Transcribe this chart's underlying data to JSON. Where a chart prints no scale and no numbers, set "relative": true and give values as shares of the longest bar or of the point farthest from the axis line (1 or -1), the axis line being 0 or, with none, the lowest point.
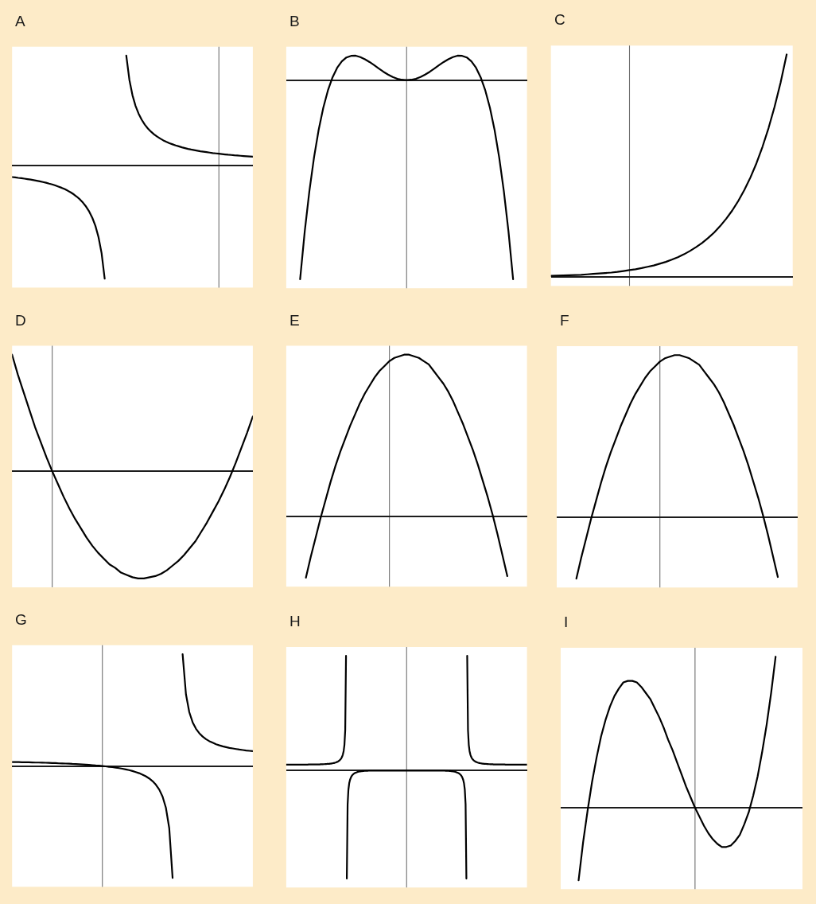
{
  "chart_data": [
    {
      "type": "line",
      "title": "A",
      "relative": true,
      "categories": [
        null,
        null,
        null,
        null,
        null,
        null,
        null,
        null,
        null,
        null,
        null,
        null,
        null,
        null,
        null,
        null,
        null,
        null,
        null,
        null,
        null,
        null,
        null,
        null,
        null,
        null,
        null,
        null,
        null,
        null,
        null,
        null,
        null,
        null,
        null,
        null,
        null,
        null,
        null,
        null,
        null,
        null,
        null,
        null,
        null,
        null,
        null,
        null,
        null,
        null,
        null,
        null,
        null,
        null,
        null,
        null,
        null,
        null,
        null,
        null,
        null,
        null,
        null,
        null,
        null,
        null,
        null,
        null,
        null,
        null,
        null,
        null,
        null,
        null,
        null,
        null,
        null,
        null,
        null
      ],
      "series": [
        {
          "color": "#000000",
          "values": [
            -0.103,
            -0.106,
            -0.11,
            -0.113,
            -0.117,
            -0.121,
            -0.125,
            -0.13,
            -0.135,
            -0.141,
            -0.147,
            -0.153,
            -0.161,
            -0.168,
            -0.177,
            -0.187,
            -0.197,
            -0.209,
            -0.223,
            -0.238,
            -0.256,
            -0.277,
            -0.301,
            -0.33,
            -0.365,
            -0.408,
            -0.463,
            -0.534,
            -0.633,
            -0.775,
            -1.0,
            null,
            null,
            null,
            null,
            null,
            null,
            null,
            null,
            null,
            null,
            null,
            null,
            null,
            null,
            null,
            null,
            null,
            null,
            null,
            null,
            null,
            null,
            null,
            null,
            null,
            null,
            null,
            null,
            null,
            null,
            null,
            null,
            null,
            null,
            null,
            null,
            null,
            null,
            null,
            null,
            null,
            null,
            null,
            null,
            null,
            null,
            null,
            null
          ]
        },
        {
          "color": "#000000",
          "values": [
            null,
            null,
            null,
            null,
            null,
            null,
            null,
            null,
            null,
            null,
            null,
            null,
            null,
            null,
            null,
            null,
            null,
            null,
            null,
            null,
            null,
            null,
            null,
            null,
            null,
            null,
            null,
            null,
            null,
            null,
            null,
            null,
            null,
            null,
            null,
            null,
            null,
            0.969,
            0.756,
            0.62,
            0.525,
            0.456,
            0.403,
            0.36,
            0.326,
            0.298,
            0.274,
            0.254,
            0.237,
            0.221,
            0.208,
            0.196,
            0.186,
            0.176,
            0.168,
            0.16,
            0.153,
            0.146,
            0.14,
            0.135,
            0.13,
            0.125,
            0.121,
            0.117,
            0.113,
            0.109,
            0.106,
            0.103,
            0.1,
            0.097,
            0.094,
            0.092,
            0.089,
            0.087,
            0.085,
            0.083,
            0.081,
            0.079,
            0.077
          ]
        }
      ]
    },
    {
      "type": "line",
      "title": "B",
      "relative": true,
      "color": "#000000",
      "categories": [
        null,
        null,
        null,
        null,
        null,
        null,
        null,
        null,
        null,
        null,
        null,
        null,
        null,
        null,
        null,
        null,
        null,
        null,
        null,
        null,
        null,
        null,
        null,
        null,
        null,
        null,
        null,
        null,
        null,
        null,
        null,
        null,
        null,
        null,
        null,
        null,
        null,
        null,
        null,
        null,
        null,
        null,
        null,
        null,
        null,
        null,
        null,
        null,
        null,
        null,
        null,
        null,
        null
      ],
      "values": [
        null,
        null,
        null,
        -1.0,
        -0.759,
        -0.557,
        -0.388,
        -0.25,
        -0.139,
        -0.052,
        0.014,
        0.062,
        0.094,
        0.114,
        0.122,
        0.123,
        0.116,
        0.105,
        0.091,
        0.075,
        0.058,
        0.042,
        0.028,
        0.016,
        0.007,
        0.002,
        0,
        0.002,
        0.007,
        0.016,
        0.028,
        0.042,
        0.058,
        0.075,
        0.091,
        0.105,
        0.116,
        0.123,
        0.122,
        0.114,
        0.094,
        0.062,
        0.014,
        -0.052,
        -0.139,
        -0.25,
        -0.388,
        -0.557,
        -0.759,
        -1.0,
        null,
        null,
        null
      ]
    },
    {
      "type": "line",
      "title": "C",
      "relative": true,
      "color": "#000000",
      "categories": [
        null,
        null,
        null,
        null,
        null,
        null,
        null,
        null,
        null,
        null,
        null,
        null,
        null,
        null,
        null,
        null,
        null,
        null,
        null,
        null,
        null,
        null,
        null,
        null,
        null,
        null,
        null,
        null,
        null,
        null,
        null,
        null,
        null,
        null,
        null,
        null,
        null,
        null,
        null,
        null,
        null
      ],
      "values": [
        0.005,
        0.006,
        0.007,
        0.008,
        0.009,
        0.01,
        0.012,
        0.014,
        0.016,
        0.018,
        0.02,
        0.023,
        0.027,
        0.031,
        0.035,
        0.04,
        0.046,
        0.052,
        0.06,
        0.068,
        0.078,
        0.089,
        0.102,
        0.117,
        0.134,
        0.153,
        0.175,
        0.2,
        0.229,
        0.262,
        0.299,
        0.342,
        0.391,
        0.447,
        0.511,
        0.585,
        0.669,
        0.765,
        0.874,
        1.0,
        null
      ]
    },
    {
      "type": "line",
      "title": "D",
      "relative": true,
      "color": "#000000",
      "categories": [
        null,
        null,
        null,
        null,
        null,
        null,
        null,
        null,
        null,
        null,
        null,
        null,
        null,
        null,
        null,
        null,
        null,
        null,
        null,
        null,
        null,
        null,
        null,
        null,
        null,
        null,
        null,
        null,
        null,
        null,
        null,
        null,
        null,
        null,
        null,
        null,
        null,
        null,
        null,
        null,
        null,
        null,
        null
      ],
      "values": [
        1.0,
        0.83,
        0.68,
        0.53,
        0.38,
        0.25,
        0.12,
        0,
        -0.11,
        -0.22,
        -0.32,
        -0.41,
        -0.49,
        -0.57,
        -0.64,
        -0.7,
        -0.75,
        -0.8,
        -0.83,
        -0.87,
        -0.89,
        -0.91,
        -0.92,
        -0.92,
        -0.91,
        -0.9,
        -0.88,
        -0.85,
        -0.81,
        -0.77,
        -0.72,
        -0.66,
        -0.6,
        -0.52,
        -0.44,
        -0.35,
        -0.26,
        -0.16,
        -0.05,
        0.07,
        0.2,
        0.33,
        0.47
      ]
    },
    {
      "type": "line",
      "title": "E",
      "relative": true,
      "color": "#000000",
      "categories": [
        null,
        null,
        null,
        null,
        null,
        null,
        null,
        null,
        null,
        null,
        null,
        null,
        null,
        null,
        null,
        null,
        null,
        null,
        null,
        null,
        null,
        null,
        null,
        null,
        null,
        null,
        null,
        null,
        null,
        null,
        null,
        null,
        null,
        null,
        null,
        null,
        null,
        null,
        null,
        null,
        null,
        null,
        null,
        null,
        null,
        null,
        null,
        null,
        null,
        null
      ],
      "values": [
        null,
        null,
        null,
        null,
        -0.38,
        -0.25,
        -0.13,
        -0.01,
        0.1,
        0.21,
        0.31,
        0.4,
        0.48,
        0.56,
        0.63,
        0.7,
        0.76,
        0.81,
        0.86,
        0.9,
        0.93,
        0.96,
        0.98,
        0.99,
        1.0,
        1.0,
        0.99,
        0.98,
        0.96,
        0.94,
        0.9,
        0.86,
        0.82,
        0.77,
        0.71,
        0.64,
        0.57,
        0.49,
        0.41,
        0.32,
        0.22,
        0.12,
        0.01,
        -0.11,
        -0.24,
        -0.37,
        null,
        null,
        null,
        null
      ]
    },
    {
      "type": "line",
      "title": "F",
      "relative": true,
      "color": "#000000",
      "categories": [
        null,
        null,
        null,
        null,
        null,
        null,
        null,
        null,
        null,
        null,
        null,
        null,
        null,
        null,
        null,
        null,
        null,
        null,
        null,
        null,
        null,
        null,
        null,
        null,
        null,
        null,
        null,
        null,
        null,
        null,
        null,
        null,
        null,
        null,
        null,
        null,
        null,
        null,
        null,
        null,
        null,
        null,
        null,
        null,
        null,
        null,
        null,
        null,
        null,
        null
      ],
      "values": [
        null,
        null,
        null,
        null,
        -0.38,
        -0.25,
        -0.13,
        -0.01,
        0.1,
        0.21,
        0.31,
        0.4,
        0.48,
        0.56,
        0.63,
        0.7,
        0.76,
        0.81,
        0.86,
        0.9,
        0.93,
        0.96,
        0.98,
        0.99,
        1.0,
        1.0,
        0.99,
        0.98,
        0.96,
        0.94,
        0.9,
        0.86,
        0.82,
        0.77,
        0.71,
        0.64,
        0.57,
        0.49,
        0.41,
        0.32,
        0.22,
        0.12,
        0.01,
        -0.11,
        -0.24,
        -0.37,
        null,
        null,
        null,
        null
      ]
    },
    {
      "type": "line",
      "title": "G",
      "relative": true,
      "categories": [
        null,
        null,
        null,
        null,
        null,
        null,
        null,
        null,
        null,
        null,
        null,
        null,
        null,
        null,
        null,
        null,
        null,
        null,
        null,
        null,
        null,
        null,
        null,
        null,
        null,
        null,
        null,
        null,
        null,
        null,
        null,
        null,
        null,
        null,
        null,
        null,
        null,
        null,
        null,
        null,
        null,
        null,
        null,
        null,
        null,
        null,
        null,
        null,
        null,
        null,
        null,
        null,
        null,
        null,
        null,
        null,
        null,
        null,
        null,
        null,
        null,
        null,
        null,
        null,
        null,
        null,
        null,
        null,
        null,
        null,
        null,
        null,
        null
      ],
      "series": [
        {
          "color": "#000000",
          "values": [
            0.036,
            0.036,
            0.035,
            0.034,
            0.034,
            0.033,
            0.032,
            0.031,
            0.031,
            0.03,
            0.029,
            0.028,
            0.027,
            0.026,
            0.024,
            0.023,
            0.022,
            0.021,
            0.019,
            0.018,
            0.016,
            0.014,
            0.012,
            0.01,
            0.008,
            0.005,
            0.003,
            0,
            -0.003,
            -0.007,
            -0.01,
            -0.014,
            -0.019,
            -0.024,
            -0.03,
            -0.037,
            -0.045,
            -0.054,
            -0.064,
            -0.077,
            -0.092,
            -0.111,
            -0.135,
            -0.167,
            -0.21,
            -0.273,
            -0.373,
            -0.556,
            -1.0,
            null,
            null,
            null,
            null,
            null,
            null,
            null,
            null,
            null,
            null,
            null,
            null,
            null,
            null,
            null,
            null,
            null,
            null,
            null,
            null,
            null,
            null,
            null,
            null
          ]
        },
        {
          "color": "#000000",
          "values": [
            null,
            null,
            null,
            null,
            null,
            null,
            null,
            null,
            null,
            null,
            null,
            null,
            null,
            null,
            null,
            null,
            null,
            null,
            null,
            null,
            null,
            null,
            null,
            null,
            null,
            null,
            null,
            null,
            null,
            null,
            null,
            null,
            null,
            null,
            null,
            null,
            null,
            null,
            null,
            null,
            null,
            null,
            null,
            null,
            null,
            null,
            null,
            null,
            null,
            null,
            null,
            1.0,
            0.641,
            0.481,
            0.391,
            0.333,
            0.293,
            0.263,
            0.24,
            0.222,
            0.208,
            0.195,
            0.185,
            0.176,
            0.169,
            0.162,
            0.157,
            0.152,
            0.147,
            0.143,
            0.139,
            0.136,
            0.133
          ]
        }
      ]
    },
    {
      "type": "line",
      "title": "H",
      "relative": true,
      "categories": [
        null,
        null,
        null,
        null,
        null,
        null,
        null,
        null,
        null,
        null,
        null,
        null,
        null,
        null,
        null,
        null,
        null,
        null,
        null,
        null,
        null,
        null,
        null,
        null,
        null,
        null,
        null,
        null,
        null,
        null,
        null,
        null,
        null,
        null,
        null,
        null,
        null,
        null,
        null,
        null,
        null,
        null,
        null,
        null,
        null,
        null,
        null,
        null,
        null,
        null,
        null,
        null,
        null,
        null,
        null,
        null,
        null,
        null,
        null,
        null,
        null,
        null,
        null,
        null,
        null,
        null,
        null,
        null,
        null,
        null,
        null,
        null,
        null,
        null,
        null,
        null,
        null,
        null,
        null,
        null,
        null,
        null,
        null,
        null,
        null,
        null,
        null,
        null,
        null,
        null,
        null,
        null,
        null,
        null,
        null,
        null,
        null,
        null,
        null,
        null,
        null,
        null,
        null,
        null,
        null,
        null,
        null,
        null,
        null,
        null,
        null,
        null,
        null,
        null,
        null,
        null,
        null,
        null,
        null,
        null,
        null,
        null,
        null,
        null,
        null,
        null,
        null,
        null,
        null,
        null,
        null,
        null,
        null,
        null,
        null,
        null,
        null,
        null,
        null,
        null,
        null,
        null,
        null,
        null,
        null,
        null,
        null,
        null,
        null,
        null,
        null,
        null,
        null,
        null,
        null,
        null,
        null,
        null,
        null,
        null,
        null,
        null,
        null,
        null,
        null,
        null,
        null,
        null,
        null,
        null,
        null,
        null,
        null,
        null,
        null,
        null,
        null,
        null,
        null,
        null,
        null,
        null,
        null,
        null,
        null,
        null,
        null,
        null,
        null,
        null,
        null,
        null,
        null,
        null,
        null,
        null,
        null,
        null,
        null,
        null,
        null,
        null,
        null,
        null,
        null,
        null,
        null,
        null,
        null,
        null,
        null,
        null,
        null,
        null,
        null,
        null,
        null,
        null,
        null,
        null,
        null,
        null,
        null,
        null,
        null,
        null,
        null,
        null,
        null,
        null,
        null,
        null,
        null,
        null,
        null,
        null,
        null,
        null,
        null,
        null,
        null,
        null,
        null,
        null,
        null,
        null,
        null,
        null,
        null,
        null,
        null,
        null,
        null,
        null,
        null,
        null,
        null,
        null,
        null,
        null,
        null,
        null,
        null,
        null,
        null,
        null,
        null,
        null,
        null,
        null,
        null,
        null,
        null,
        null,
        null,
        null,
        null,
        null,
        null,
        null,
        null,
        null,
        null,
        null,
        null,
        null,
        null,
        null,
        null,
        null,
        null,
        null,
        null,
        null,
        null,
        null,
        null,
        null,
        null,
        null,
        null,
        null,
        null
      ],
      "series": [
        {
          "color": "#000000",
          "values": [
            0.052,
            0.052,
            0.052,
            0.052,
            0.052,
            0.052,
            0.052,
            0.052,
            0.052,
            0.052,
            0.052,
            0.052,
            0.052,
            0.052,
            0.052,
            0.052,
            0.052,
            0.052,
            0.052,
            0.052,
            0.052,
            0.052,
            0.052,
            0.052,
            0.052,
            0.052,
            0.052,
            0.052,
            0.053,
            0.053,
            0.053,
            0.053,
            0.053,
            0.053,
            0.053,
            0.053,
            0.053,
            0.053,
            0.054,
            0.054,
            0.054,
            0.054,
            0.054,
            0.055,
            0.055,
            0.055,
            0.055,
            0.056,
            0.056,
            0.057,
            0.057,
            0.058,
            0.058,
            0.059,
            0.059,
            0.06,
            0.061,
            0.062,
            0.063,
            0.065,
            0.066,
            0.068,
            0.07,
            0.073,
            0.076,
            0.079,
            0.084,
            0.09,
            0.097,
            0.106,
            0.12,
            0.139,
            0.169,
            0.224,
            0.353,
            1.0,
            null,
            null,
            null,
            null,
            null,
            null,
            null,
            null,
            null,
            null,
            null,
            null,
            null,
            null,
            null,
            null,
            null,
            null,
            null,
            null,
            null,
            null,
            null,
            null,
            null,
            null,
            null,
            null,
            null,
            null,
            null,
            null,
            null,
            null,
            null,
            null,
            null,
            null,
            null,
            null,
            null,
            null,
            null,
            null,
            null,
            null,
            null,
            null,
            null,
            null,
            null,
            null,
            null,
            null,
            null,
            null,
            null,
            null,
            null,
            null,
            null,
            null,
            null,
            null,
            null,
            null,
            null,
            null,
            null,
            null,
            null,
            null,
            null,
            null,
            null,
            null,
            null,
            null,
            null,
            null,
            null,
            null,
            null,
            null,
            null,
            null,
            null,
            null,
            null,
            null,
            null,
            null,
            null,
            null,
            null,
            null,
            null,
            null,
            null,
            null,
            null,
            null,
            null,
            null,
            null,
            null,
            null,
            null,
            null,
            null,
            null,
            null,
            null,
            null,
            null,
            null,
            null,
            null,
            null,
            null,
            null,
            null,
            null,
            null,
            null,
            null,
            null,
            null,
            null,
            null,
            null,
            null,
            null,
            null,
            null,
            null,
            null,
            null,
            null,
            null,
            null,
            null,
            null,
            null,
            null,
            null,
            null,
            null,
            null,
            null,
            null,
            null,
            null,
            null,
            null,
            null,
            null,
            null,
            null,
            null,
            null,
            null,
            null,
            null,
            null,
            null,
            null,
            null,
            null,
            null,
            null,
            null,
            null,
            null,
            null,
            null,
            null,
            null,
            null,
            null,
            null,
            null,
            null,
            null,
            null,
            null,
            null,
            null,
            null,
            null,
            null,
            null,
            null,
            null,
            null,
            null,
            null,
            null,
            null,
            null,
            null,
            null,
            null,
            null,
            null,
            null,
            null,
            null,
            null,
            null,
            null,
            null,
            null,
            null,
            null,
            null,
            null,
            null,
            null,
            null,
            null,
            null,
            null,
            null,
            null,
            null,
            null
          ]
        },
        {
          "color": "#000000",
          "values": [
            null,
            null,
            null,
            null,
            null,
            null,
            null,
            null,
            null,
            null,
            null,
            null,
            null,
            null,
            null,
            null,
            null,
            null,
            null,
            null,
            null,
            null,
            null,
            null,
            null,
            null,
            null,
            null,
            null,
            null,
            null,
            null,
            null,
            null,
            null,
            null,
            null,
            null,
            null,
            null,
            null,
            null,
            null,
            null,
            null,
            null,
            null,
            null,
            null,
            null,
            null,
            null,
            null,
            null,
            null,
            null,
            null,
            null,
            null,
            null,
            null,
            null,
            null,
            null,
            null,
            null,
            null,
            null,
            null,
            null,
            null,
            null,
            null,
            null,
            null,
            null,
            -0.942,
            -0.295,
            -0.166,
            -0.111,
            -0.081,
            -0.062,
            -0.049,
            -0.039,
            -0.032,
            -0.027,
            -0.022,
            -0.019,
            -0.016,
            -0.013,
            -0.011,
            -0.01,
            -0.008,
            -0.007,
            -0.006,
            -0.005,
            -0.004,
            -0.004,
            -0.003,
            -0.003,
            -0.002,
            -0.002,
            -0.002,
            -0.001,
            -0.001,
            -0.001,
            -0.001,
            -0.001,
            -0.001,
            0,
            0,
            0,
            0,
            0,
            0,
            0,
            0,
            0,
            0,
            0,
            0,
            0,
            0,
            0,
            0,
            0,
            0,
            0,
            0,
            0,
            0,
            0,
            0,
            0,
            0,
            0,
            0,
            0,
            0,
            0,
            0,
            0,
            0,
            0,
            0,
            0,
            0,
            0,
            0,
            0,
            0,
            0,
            0,
            0,
            0,
            0,
            0,
            0,
            0,
            0,
            0,
            0,
            0,
            0,
            0,
            0,
            0,
            0,
            0,
            0,
            0,
            0,
            0,
            0,
            0,
            0,
            0,
            0,
            0,
            0,
            0,
            0,
            0,
            0,
            0,
            0,
            0,
            0,
            0,
            0,
            0,
            0,
            0,
            0,
            -0.001,
            -0.001,
            -0.001,
            -0.001,
            -0.001,
            -0.001,
            -0.002,
            -0.002,
            -0.002,
            -0.003,
            -0.003,
            -0.004,
            -0.004,
            -0.005,
            -0.006,
            -0.007,
            -0.008,
            -0.01,
            -0.011,
            -0.013,
            -0.016,
            -0.019,
            -0.022,
            -0.027,
            -0.032,
            -0.039,
            -0.049,
            -0.062,
            -0.081,
            -0.111,
            -0.166,
            -0.295,
            -0.942,
            null,
            null,
            null,
            null,
            null,
            null,
            null,
            null,
            null,
            null,
            null,
            null,
            null,
            null,
            null,
            null,
            null,
            null,
            null,
            null,
            null,
            null,
            null,
            null,
            null,
            null,
            null,
            null,
            null,
            null,
            null,
            null,
            null,
            null,
            null,
            null,
            null,
            null,
            null,
            null,
            null,
            null,
            null,
            null,
            null,
            null,
            null,
            null,
            null,
            null,
            null,
            null,
            null,
            null,
            null,
            null,
            null,
            null,
            null,
            null,
            null,
            null,
            null,
            null,
            null,
            null,
            null,
            null,
            null,
            null,
            null,
            null,
            null,
            null,
            null,
            null
          ]
        },
        {
          "color": "#000000",
          "values": [
            null,
            null,
            null,
            null,
            null,
            null,
            null,
            null,
            null,
            null,
            null,
            null,
            null,
            null,
            null,
            null,
            null,
            null,
            null,
            null,
            null,
            null,
            null,
            null,
            null,
            null,
            null,
            null,
            null,
            null,
            null,
            null,
            null,
            null,
            null,
            null,
            null,
            null,
            null,
            null,
            null,
            null,
            null,
            null,
            null,
            null,
            null,
            null,
            null,
            null,
            null,
            null,
            null,
            null,
            null,
            null,
            null,
            null,
            null,
            null,
            null,
            null,
            null,
            null,
            null,
            null,
            null,
            null,
            null,
            null,
            null,
            null,
            null,
            null,
            null,
            null,
            null,
            null,
            null,
            null,
            null,
            null,
            null,
            null,
            null,
            null,
            null,
            null,
            null,
            null,
            null,
            null,
            null,
            null,
            null,
            null,
            null,
            null,
            null,
            null,
            null,
            null,
            null,
            null,
            null,
            null,
            null,
            null,
            null,
            null,
            null,
            null,
            null,
            null,
            null,
            null,
            null,
            null,
            null,
            null,
            null,
            null,
            null,
            null,
            null,
            null,
            null,
            null,
            null,
            null,
            null,
            null,
            null,
            null,
            null,
            null,
            null,
            null,
            null,
            null,
            null,
            null,
            null,
            null,
            null,
            null,
            null,
            null,
            null,
            null,
            null,
            null,
            null,
            null,
            null,
            null,
            null,
            null,
            null,
            null,
            null,
            null,
            null,
            null,
            null,
            null,
            null,
            null,
            null,
            null,
            null,
            null,
            null,
            null,
            null,
            null,
            null,
            null,
            null,
            null,
            null,
            null,
            null,
            null,
            null,
            null,
            null,
            null,
            null,
            null,
            null,
            null,
            null,
            null,
            null,
            null,
            null,
            null,
            null,
            null,
            null,
            null,
            null,
            null,
            null,
            null,
            null,
            null,
            null,
            null,
            null,
            null,
            null,
            null,
            null,
            null,
            null,
            null,
            null,
            null,
            null,
            null,
            null,
            null,
            null,
            null,
            null,
            1.0,
            0.353,
            0.224,
            0.169,
            0.139,
            0.12,
            0.106,
            0.097,
            0.09,
            0.084,
            0.079,
            0.076,
            0.073,
            0.07,
            0.068,
            0.066,
            0.065,
            0.063,
            0.062,
            0.061,
            0.06,
            0.059,
            0.059,
            0.058,
            0.058,
            0.057,
            0.057,
            0.056,
            0.056,
            0.055,
            0.055,
            0.055,
            0.055,
            0.054,
            0.054,
            0.054,
            0.054,
            0.054,
            0.053,
            0.053,
            0.053,
            0.053,
            0.053,
            0.053,
            0.053,
            0.053,
            0.053,
            0.053,
            0.052,
            0.052,
            0.052,
            0.052,
            0.052,
            0.052,
            0.052,
            0.052,
            0.052,
            0.052,
            0.052,
            0.052,
            0.052,
            0.052,
            0.052,
            0.052,
            0.052,
            0.052,
            0.052,
            0.052,
            0.052,
            0.052,
            0.052,
            0.052,
            0.052,
            0.052,
            0.052,
            0.052
          ]
        }
      ]
    },
    {
      "type": "line",
      "title": "I",
      "relative": true,
      "color": "#000000",
      "categories": [
        null,
        null,
        null,
        null,
        null,
        null,
        null,
        null,
        null,
        null,
        null,
        null,
        null,
        null,
        null,
        null,
        null,
        null,
        null,
        null,
        null,
        null,
        null,
        null,
        null,
        null,
        null,
        null,
        null,
        null,
        null,
        null,
        null,
        null,
        null,
        null,
        null,
        null,
        null,
        null,
        null,
        null,
        null,
        null,
        null,
        null,
        null,
        null,
        null,
        null,
        null,
        null,
        null,
        null,
        null
      ],
      "values": [
        null,
        null,
        null,
        null,
        -0.48,
        -0.23,
        -0.02,
        0.17,
        0.33,
        0.47,
        0.58,
        0.67,
        0.74,
        0.79,
        0.83,
        0.84,
        0.84,
        0.83,
        0.8,
        0.76,
        0.72,
        0.66,
        0.6,
        0.53,
        0.45,
        0.38,
        0.3,
        0.22,
        0.14,
        0.07,
        0,
        -0.06,
        -0.12,
        -0.17,
        -0.21,
        -0.24,
        -0.26,
        -0.26,
        -0.25,
        -0.22,
        -0.18,
        -0.11,
        -0.03,
        0.08,
        0.21,
        0.37,
        0.55,
        0.76,
        1.0,
        null,
        null,
        null,
        null,
        null,
        null
      ]
    }
  ]
}
